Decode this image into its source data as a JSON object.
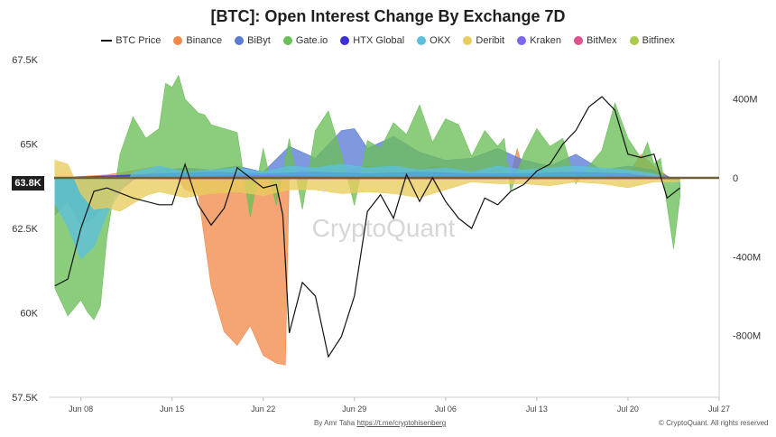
{
  "chart_data": {
    "type": "area",
    "title": "[BTC]: Open Interest Change By Exchange 7D",
    "x_ticks": [
      "Jun 08",
      "Jun 15",
      "Jun 22",
      "Jun 29",
      "Jul 06",
      "Jul 13",
      "Jul 20",
      "Jul 27"
    ],
    "y_left_ticks": [
      "67.5K",
      "65K",
      "62.5K",
      "60K",
      "57.5K"
    ],
    "y_right_ticks": [
      "400M",
      "0",
      "-400M",
      "-800M"
    ],
    "y_left_range": [
      57500,
      67500
    ],
    "y_right_range": [
      -1000,
      580
    ],
    "current_price_label": "63.8K",
    "watermark": "CryptoQuant",
    "series": [
      {
        "name": "BTC Price",
        "color": "#111111",
        "kind": "line",
        "axis": "left",
        "x": [
          6,
          7,
          8,
          9,
          10,
          12,
          14,
          15,
          16,
          17,
          18,
          19,
          20,
          21,
          22,
          23,
          23.5,
          24,
          25,
          26,
          27,
          28,
          29,
          30,
          31,
          32,
          33,
          34,
          35,
          36,
          37,
          38,
          39,
          40,
          41,
          42,
          43,
          44,
          45,
          46,
          47,
          48,
          49,
          50,
          51,
          52,
          53,
          54
        ],
        "y": [
          60.8,
          61.0,
          62.5,
          63.6,
          63.7,
          63.4,
          63.2,
          63.2,
          64.4,
          63.2,
          62.6,
          63.1,
          64.3,
          64.0,
          63.7,
          63.8,
          62.9,
          59.4,
          60.9,
          60.5,
          58.7,
          59.3,
          60.5,
          63.0,
          63.5,
          62.8,
          64.1,
          63.3,
          64.0,
          63.3,
          62.8,
          62.5,
          63.4,
          63.2,
          63.6,
          63.8,
          64.2,
          64.4,
          65.0,
          65.4,
          66.1,
          66.4,
          66.0,
          64.7,
          64.6,
          64.7,
          63.4,
          63.7
        ]
      },
      {
        "name": "Binance",
        "color": "#f28a4b",
        "kind": "area",
        "axis": "right",
        "x": [
          6,
          10,
          14,
          15,
          16,
          17,
          18,
          19,
          20,
          21,
          22,
          23,
          23.7,
          24,
          25,
          27,
          30,
          33,
          35,
          38,
          40,
          41,
          41.5,
          42,
          44,
          46,
          48,
          50,
          51,
          52,
          53,
          54
        ],
        "y": [
          0,
          15,
          60,
          40,
          -60,
          -80,
          -550,
          -780,
          -850,
          -750,
          -900,
          -940,
          -950,
          20,
          40,
          20,
          60,
          20,
          60,
          30,
          50,
          10,
          150,
          30,
          50,
          20,
          40,
          20,
          120,
          60,
          10,
          -30
        ]
      },
      {
        "name": "BiByt",
        "color": "#5b7bd5",
        "kind": "area",
        "axis": "right",
        "x": [
          6,
          7,
          8,
          9,
          10,
          12,
          14,
          16,
          18,
          20,
          22,
          24,
          26,
          28,
          29,
          30,
          32,
          34,
          36,
          38,
          40,
          42,
          44,
          46,
          48,
          50,
          52,
          54
        ],
        "y": [
          -190,
          -120,
          -240,
          -200,
          -120,
          -10,
          40,
          50,
          40,
          60,
          30,
          160,
          100,
          240,
          250,
          150,
          210,
          130,
          90,
          100,
          150,
          90,
          60,
          120,
          40,
          60,
          40,
          -20
        ]
      },
      {
        "name": "Gate.io",
        "color": "#6bbf59",
        "kind": "area",
        "axis": "right",
        "x": [
          6,
          7,
          8,
          8.5,
          9,
          9.5,
          10,
          11,
          12,
          13,
          14,
          14.5,
          15,
          15.5,
          16,
          17,
          17.5,
          18,
          19,
          20,
          21,
          22,
          23,
          24,
          25,
          26,
          27,
          28,
          29,
          30,
          31,
          32,
          33,
          34,
          35,
          36,
          37,
          38,
          39,
          40,
          40.5,
          41,
          42,
          43,
          44,
          45,
          46,
          47,
          48,
          49,
          50,
          51,
          51.5,
          52,
          52.5,
          53,
          53.5,
          54
        ],
        "y": [
          -560,
          -700,
          -620,
          -680,
          -720,
          -650,
          -300,
          120,
          310,
          200,
          250,
          480,
          460,
          520,
          400,
          330,
          320,
          270,
          250,
          230,
          -200,
          150,
          -140,
          200,
          -160,
          240,
          340,
          120,
          -140,
          190,
          150,
          280,
          220,
          370,
          180,
          300,
          270,
          110,
          240,
          160,
          200,
          -70,
          120,
          250,
          160,
          200,
          -30,
          60,
          140,
          380,
          200,
          100,
          180,
          70,
          100,
          -140,
          -360,
          -90
        ]
      },
      {
        "name": "HTX Global",
        "color": "#3b2fd6",
        "kind": "area",
        "axis": "right",
        "x": [
          6,
          10,
          14,
          18,
          22,
          26,
          30,
          34,
          38,
          42,
          46,
          50,
          54
        ],
        "y": [
          0,
          10,
          20,
          30,
          20,
          30,
          20,
          30,
          20,
          20,
          30,
          20,
          -10
        ]
      },
      {
        "name": "OKX",
        "color": "#5cc0dd",
        "kind": "area",
        "axis": "right",
        "x": [
          6,
          7,
          8,
          9,
          10,
          12,
          14,
          16,
          18,
          20,
          22,
          24,
          26,
          28,
          30,
          32,
          34,
          36,
          38,
          40,
          42,
          44,
          46,
          48,
          50,
          52,
          54
        ],
        "y": [
          -130,
          -250,
          -410,
          -350,
          -180,
          30,
          60,
          30,
          40,
          50,
          30,
          60,
          50,
          70,
          50,
          60,
          40,
          50,
          30,
          60,
          40,
          50,
          60,
          50,
          40,
          20,
          -30
        ]
      },
      {
        "name": "Deribit",
        "color": "#e8cd5e",
        "kind": "area",
        "axis": "right",
        "x": [
          6,
          7,
          8,
          9,
          10,
          11,
          12,
          13,
          14,
          16,
          18,
          20,
          22,
          24,
          26,
          28,
          30,
          32,
          34,
          36,
          38,
          40,
          42,
          44,
          46,
          48,
          50,
          52,
          54
        ],
        "y": [
          90,
          70,
          -80,
          -160,
          -150,
          -170,
          -130,
          -90,
          -70,
          -100,
          -80,
          -70,
          -90,
          -60,
          -60,
          -80,
          -70,
          -80,
          -100,
          -60,
          -20,
          -30,
          -30,
          -40,
          -20,
          -30,
          -50,
          -20,
          -20
        ]
      },
      {
        "name": "Kraken",
        "color": "#7b68ee",
        "kind": "area",
        "axis": "right",
        "x": [
          6,
          14,
          22,
          30,
          38,
          46,
          54
        ],
        "y": [
          0,
          5,
          10,
          5,
          8,
          5,
          0
        ]
      },
      {
        "name": "BitMex",
        "color": "#e0528b",
        "kind": "area",
        "axis": "right",
        "x": [
          6,
          14,
          22,
          30,
          38,
          46,
          54
        ],
        "y": [
          0,
          -5,
          -5,
          -5,
          -5,
          -5,
          -5
        ]
      },
      {
        "name": "Bitfinex",
        "color": "#a8cc4a",
        "kind": "area",
        "axis": "right",
        "x": [
          6,
          14,
          22,
          30,
          38,
          46,
          54
        ],
        "y": [
          0,
          5,
          5,
          5,
          5,
          5,
          0
        ]
      }
    ]
  },
  "footer": {
    "author": "By Amr Taha ",
    "link": "https://t.me/cryptohisenberg",
    "copyright": "© CryptoQuant. All rights reserved"
  }
}
